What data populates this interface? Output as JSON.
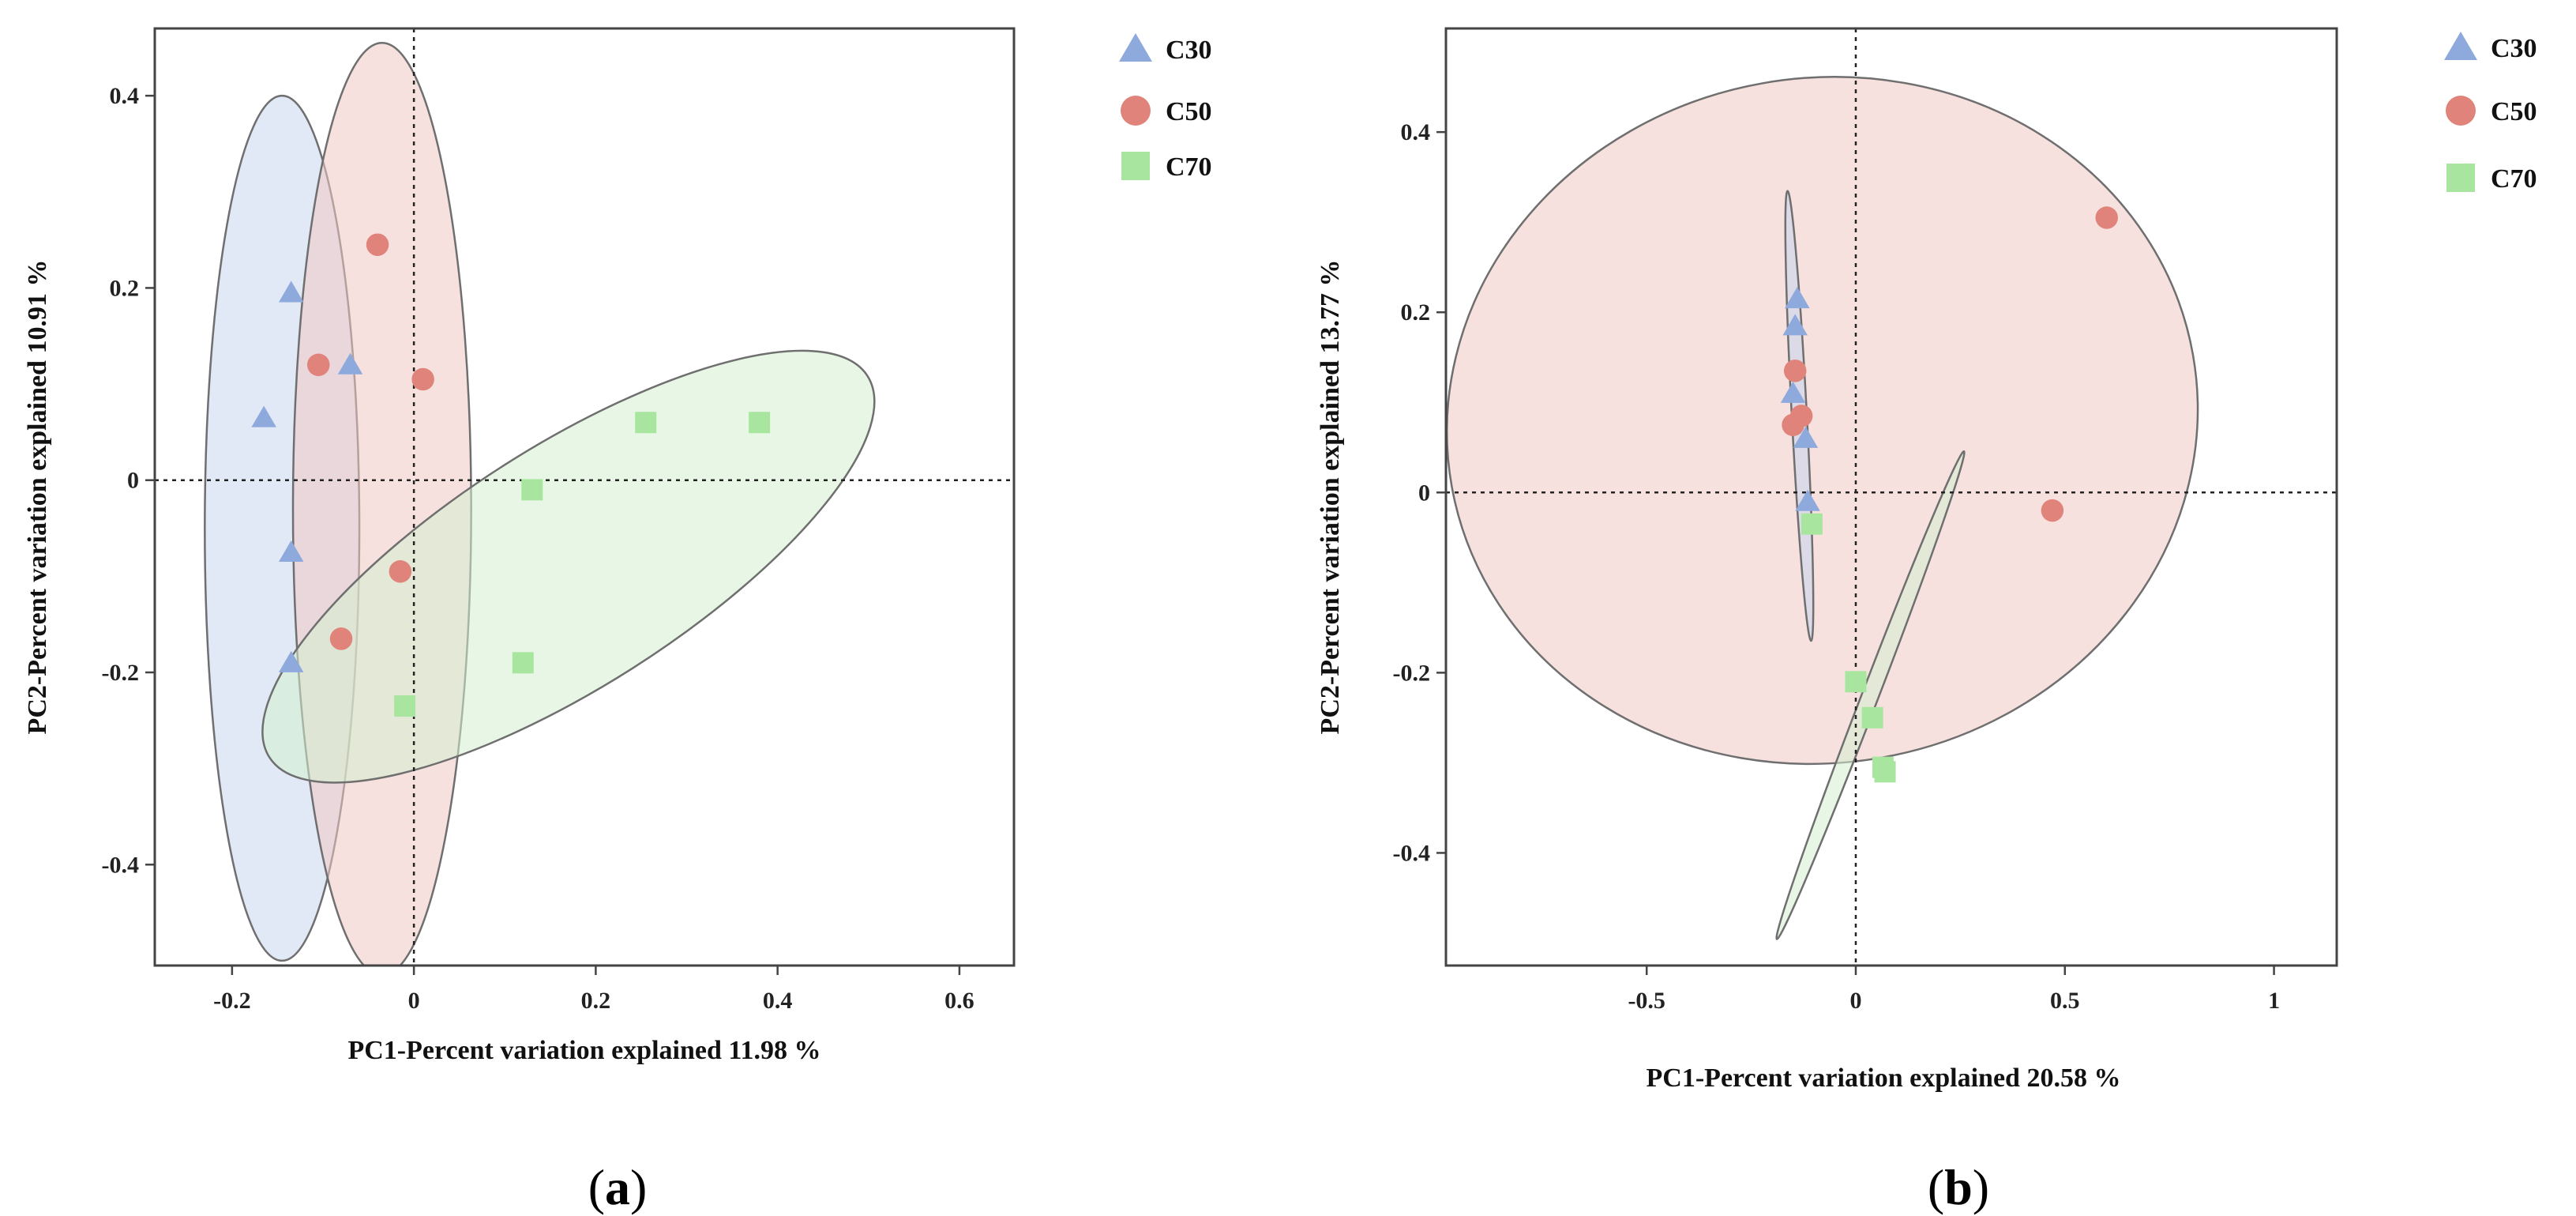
{
  "colors": {
    "C30": "#8ea9dc",
    "C50": "#e0837a",
    "C70": "#a8e6a0",
    "ellipse_C30": "#c9d6ee",
    "ellipse_C50": "#f1c9c4",
    "ellipse_C70": "#d6f0d0",
    "axis": "#444444"
  },
  "chart_data": [
    {
      "type": "scatter",
      "panel_label": "a",
      "xlabel": "PC1-Percent variation explained 11.98 %",
      "ylabel": "PC2-Percent variation explained 10.91 %",
      "xlim": [
        -0.285,
        0.66
      ],
      "ylim": [
        -0.505,
        0.47
      ],
      "xticks": [
        -0.2,
        0,
        0.2,
        0.4,
        0.6
      ],
      "xtick_labels": [
        "-0.2",
        "0",
        "0.2",
        "0.4",
        "0.6"
      ],
      "yticks": [
        -0.4,
        -0.2,
        0,
        0.2,
        0.4
      ],
      "ytick_labels": [
        "-0.4",
        "-0.2",
        "0",
        "0.2",
        "0.4"
      ],
      "reference_lines": {
        "x": 0,
        "y": 0
      },
      "legend": [
        "C30",
        "C50",
        "C70"
      ],
      "series": [
        {
          "name": "C30",
          "marker": "triangle",
          "x": [
            -0.135,
            -0.07,
            -0.165,
            -0.135,
            -0.135
          ],
          "y": [
            0.195,
            0.12,
            0.065,
            -0.075,
            -0.19
          ]
        },
        {
          "name": "C50",
          "marker": "circle",
          "x": [
            -0.04,
            -0.105,
            0.01,
            -0.015,
            -0.08
          ],
          "y": [
            0.245,
            0.12,
            0.105,
            -0.095,
            -0.165
          ]
        },
        {
          "name": "C70",
          "marker": "square",
          "x": [
            0.255,
            0.38,
            0.13,
            0.12,
            -0.01
          ],
          "y": [
            0.06,
            0.06,
            -0.01,
            -0.19,
            -0.235
          ]
        }
      ],
      "ellipses": [
        {
          "series": "C30",
          "cx": -0.145,
          "cy": -0.05,
          "rx": 0.085,
          "ry": 0.45,
          "angle": 0
        },
        {
          "series": "C50",
          "cx": -0.035,
          "cy": -0.03,
          "rx": 0.098,
          "ry": 0.485,
          "angle": 0
        },
        {
          "series": "C70",
          "cx": 0.17,
          "cy": -0.09,
          "rx": 0.39,
          "ry": 0.125,
          "angle": 32.5
        }
      ]
    },
    {
      "type": "scatter",
      "panel_label": "b",
      "xlabel": "PC1-Percent variation explained 20.58 %",
      "ylabel": "PC2-Percent variation explained 13.77 %",
      "xlim": [
        -0.98,
        1.15
      ],
      "ylim": [
        -0.525,
        0.515
      ],
      "xticks": [
        -0.5,
        0,
        0.5,
        1
      ],
      "xtick_labels": [
        "-0.5",
        "0",
        "0.5",
        "1"
      ],
      "yticks": [
        -0.4,
        -0.2,
        0,
        0.2,
        0.4
      ],
      "ytick_labels": [
        "-0.4",
        "-0.2",
        "0",
        "0.2",
        "0.4"
      ],
      "reference_lines": {
        "x": 0,
        "y": 0
      },
      "legend": [
        "C30",
        "C50",
        "C70"
      ],
      "series": [
        {
          "name": "C30",
          "marker": "triangle",
          "x": [
            -0.14,
            -0.145,
            -0.15,
            -0.12,
            -0.115
          ],
          "y": [
            0.215,
            0.185,
            0.11,
            0.06,
            -0.01
          ]
        },
        {
          "name": "C50",
          "marker": "circle",
          "x": [
            0.6,
            -0.145,
            -0.13,
            -0.15,
            0.47
          ],
          "y": [
            0.305,
            0.135,
            0.085,
            0.075,
            -0.02
          ]
        },
        {
          "name": "C70",
          "marker": "square",
          "x": [
            -0.105,
            0.0,
            0.04,
            0.065,
            0.07
          ],
          "y": [
            -0.035,
            -0.21,
            -0.25,
            -0.305,
            -0.31
          ]
        }
      ],
      "ellipses": [
        {
          "series": "C50",
          "cx": -0.08,
          "cy": 0.08,
          "rx": 0.9,
          "ry": 0.38,
          "angle": 10
        },
        {
          "series": "C30",
          "cx": -0.135,
          "cy": 0.085,
          "rx": 0.018,
          "ry": 0.25,
          "angle": 3
        },
        {
          "series": "C70",
          "cx": 0.035,
          "cy": -0.225,
          "rx": 0.02,
          "ry": 0.29,
          "angle": -21
        }
      ]
    }
  ]
}
